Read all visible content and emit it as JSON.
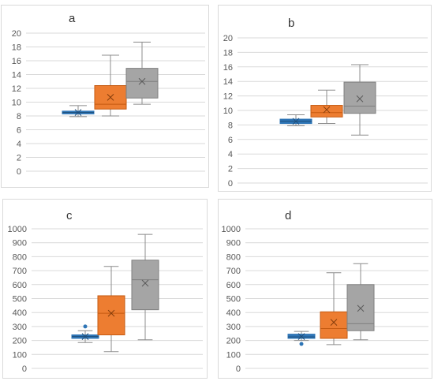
{
  "chart_data": [
    {
      "type": "box",
      "title": "a",
      "ylim": [
        0,
        20
      ],
      "yticks": [
        0,
        2,
        4,
        6,
        8,
        10,
        12,
        14,
        16,
        18,
        20
      ],
      "grid": true,
      "series": [
        {
          "color": "#2e75b6",
          "min": 7.9,
          "q1": 8.3,
          "median": 8.5,
          "q3": 8.7,
          "max": 9.5,
          "mean": 8.5,
          "outliers": []
        },
        {
          "color": "#ed7d31",
          "min": 8.0,
          "q1": 9.0,
          "median": 9.7,
          "q3": 12.4,
          "max": 16.8,
          "mean": 10.7,
          "outliers": []
        },
        {
          "color": "#a5a5a5",
          "min": 9.7,
          "q1": 10.6,
          "median": 13.0,
          "q3": 14.9,
          "max": 18.7,
          "mean": 13.0,
          "outliers": []
        }
      ]
    },
    {
      "type": "box",
      "title": "b",
      "ylim": [
        0,
        20
      ],
      "yticks": [
        0,
        2,
        4,
        6,
        8,
        10,
        12,
        14,
        16,
        18,
        20
      ],
      "grid": true,
      "series": [
        {
          "color": "#2e75b6",
          "min": 7.9,
          "q1": 8.2,
          "median": 8.5,
          "q3": 8.8,
          "max": 9.4,
          "mean": 8.5,
          "outliers": []
        },
        {
          "color": "#ed7d31",
          "min": 8.2,
          "q1": 9.1,
          "median": 9.7,
          "q3": 10.7,
          "max": 12.8,
          "mean": 10.1,
          "outliers": []
        },
        {
          "color": "#a5a5a5",
          "min": 6.6,
          "q1": 9.6,
          "median": 10.6,
          "q3": 13.9,
          "max": 16.3,
          "mean": 11.6,
          "outliers": []
        }
      ]
    },
    {
      "type": "box",
      "title": "c",
      "ylim": [
        0,
        1000
      ],
      "yticks": [
        0,
        100,
        200,
        300,
        400,
        500,
        600,
        700,
        800,
        900,
        1000
      ],
      "grid": true,
      "series": [
        {
          "color": "#2e75b6",
          "min": 185,
          "q1": 215,
          "median": 228,
          "q3": 240,
          "max": 270,
          "mean": 228,
          "outliers": [
            300
          ]
        },
        {
          "color": "#ed7d31",
          "min": 120,
          "q1": 240,
          "median": 395,
          "q3": 520,
          "max": 730,
          "mean": 395,
          "outliers": []
        },
        {
          "color": "#a5a5a5",
          "min": 205,
          "q1": 420,
          "median": 635,
          "q3": 775,
          "max": 960,
          "mean": 610,
          "outliers": []
        }
      ]
    },
    {
      "type": "box",
      "title": "d",
      "ylim": [
        0,
        1000
      ],
      "yticks": [
        0,
        100,
        200,
        300,
        400,
        500,
        600,
        700,
        800,
        900,
        1000
      ],
      "grid": true,
      "series": [
        {
          "color": "#2e75b6",
          "min": 200,
          "q1": 215,
          "median": 225,
          "q3": 245,
          "max": 265,
          "mean": 228,
          "outliers": [
            175
          ]
        },
        {
          "color": "#ed7d31",
          "min": 170,
          "q1": 215,
          "median": 285,
          "q3": 405,
          "max": 685,
          "mean": 330,
          "outliers": []
        },
        {
          "color": "#a5a5a5",
          "min": 205,
          "q1": 270,
          "median": 320,
          "q3": 600,
          "max": 750,
          "mean": 430,
          "outliers": []
        }
      ]
    }
  ]
}
